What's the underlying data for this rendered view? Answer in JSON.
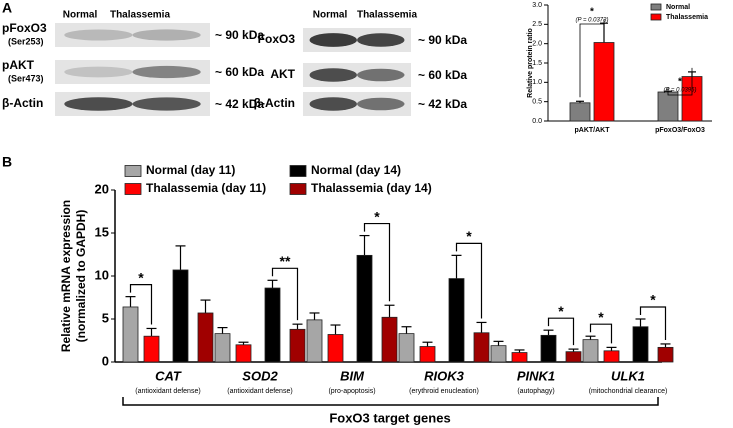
{
  "panels": [
    "A",
    "B"
  ],
  "blots": [
    {
      "columns": [
        "Normal",
        "Thalassemia"
      ],
      "rows": [
        {
          "label": "pFoxO3",
          "sublabel": "(Ser253)",
          "size": "~ 90 kDa"
        },
        {
          "label": "pAKT",
          "sublabel": "(Ser473)",
          "size": "~ 60 kDa"
        },
        {
          "label": "β-Actin",
          "size": "~ 42 kDa"
        }
      ]
    },
    {
      "columns": [
        "Normal",
        "Thalassemia"
      ],
      "rows": [
        {
          "label": "FoxO3",
          "size": "~ 90 kDa"
        },
        {
          "label": "AKT",
          "size": "~ 60 kDa"
        },
        {
          "label": "β-Actin",
          "size": "~ 42 kDa"
        }
      ]
    }
  ],
  "chart_data": [
    {
      "type": "bar",
      "y_label": "Relative protein ratio",
      "categories": [
        "pAKT/AKT",
        "pFoxO3/FoxO3"
      ],
      "series": [
        {
          "name": "Normal",
          "color": "#7f7f7f",
          "values": [
            0.47,
            0.75
          ],
          "errors": [
            0.04,
            0.02
          ]
        },
        {
          "name": "Thalassemia",
          "color": "#ff0000",
          "values": [
            2.03,
            1.15
          ],
          "errors": [
            0.5,
            0.12
          ]
        }
      ],
      "ylim": [
        0,
        3
      ],
      "yticks": [
        {
          "value": 0,
          "label": "0.0"
        },
        0.5,
        {
          "value": 1,
          "label": "1.0"
        },
        1.5,
        {
          "value": 2,
          "label": "2.0"
        },
        2.5,
        {
          "value": 3,
          "label": "3.0"
        }
      ],
      "annotations": [
        {
          "star": "*",
          "p": "(P = 0.0373)"
        },
        {
          "star": "*",
          "p": "(P = 0.0395)"
        }
      ]
    },
    {
      "type": "bar",
      "y_label": "Relative mRNA expression",
      "y_label_2": "(normalized to GAPDH)",
      "categories": [
        "CAT",
        "SOD2",
        "BIM",
        "RIOK3",
        "PINK1",
        "ULK1"
      ],
      "subcategories": [
        "(antioxidant defense)",
        "(antioxidant defense)",
        "(pro-apoptosis)",
        "(erythroid enucleation)",
        "(autophagy)",
        "(mitochondrial clearance)"
      ],
      "series": [
        {
          "name": "Normal (day 11)",
          "color": "#a6a6a6",
          "values": [
            6.4,
            3.3,
            4.9,
            3.3,
            1.9,
            2.6
          ],
          "errors": [
            1.2,
            0.7,
            0.8,
            0.8,
            0.5,
            0.4
          ]
        },
        {
          "name": "Thalassemia (day 11)",
          "color": "#ff0000",
          "values": [
            3.0,
            2.0,
            3.2,
            1.8,
            1.1,
            1.3
          ],
          "errors": [
            0.9,
            0.3,
            1.1,
            0.5,
            0.3,
            0.4
          ]
        },
        {
          "name": "Normal (day 14)",
          "color": "#000000",
          "values": [
            10.7,
            8.6,
            12.4,
            9.7,
            3.1,
            4.1
          ],
          "errors": [
            2.8,
            0.9,
            2.3,
            2.7,
            0.6,
            0.9
          ]
        },
        {
          "name": "Thalassemia (day 14)",
          "color": "#a00000",
          "values": [
            5.7,
            3.8,
            5.2,
            3.4,
            1.2,
            1.7
          ],
          "errors": [
            1.5,
            0.6,
            1.4,
            1.2,
            0.3,
            0.4
          ]
        }
      ],
      "ylim": [
        0,
        20
      ],
      "yticks": [
        0,
        5,
        10,
        15,
        20
      ],
      "annotations": [
        "*",
        "**",
        "*",
        "*",
        "*",
        "*",
        "*"
      ],
      "group_label": "FoxO3 target genes"
    }
  ]
}
